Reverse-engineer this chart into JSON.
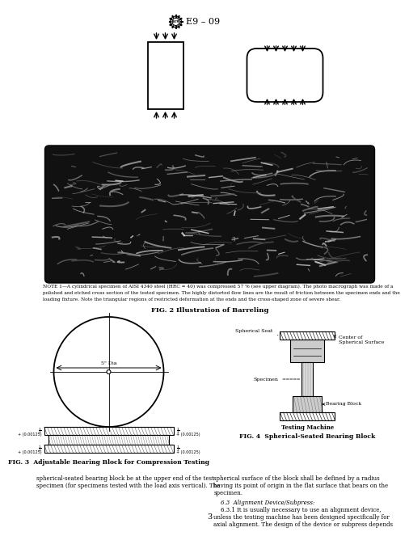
{
  "bg_color": "#ffffff",
  "fig_width": 4.74,
  "fig_height": 6.34,
  "page_number": "3",
  "header_text": "E9 – 09",
  "fig2_caption": "FIG. 2 Illustration of Barreling",
  "fig3_caption": "FIG. 3  Adjustable Bearing Block for Compression Testing",
  "fig4_caption": "FIG. 4  Spherical-Seated Bearing Block",
  "note_text": "NOTE 1—A cylindrical specimen of AISI 4340 steel (HRC ≈ 40) was compressed 57 % (see upper diagram). The photo macrograph was made of a polished and etched cross section of the tested specimen. The highly distorted flow lines are the result of friction between the specimen ends and the loading fixture. Note the triangular regions of restricted deformation at the ends and the cross-shaped zone of severe shear.",
  "spherical_seat_label": "Spherical Seat",
  "center_label": "Center of\nSpherical Surface",
  "specimen_label": "Specimen",
  "bearing_block_label": "Bearing Block",
  "testing_machine_label": "Testing Machine",
  "dim_5dia": "5\" Dia",
  "dim_tol": "± (0.00125)",
  "body_text_left": "spherical-seated bearing block be at the upper end of the test\nspecimen (for specimens tested with the load axis vertical). The",
  "body_text_right_1": "spherical surface of the block shall be defined by a radius\nhaving its point of origin in the flat surface that bears on the\nspecimen.",
  "body_text_right_2": "6.3  Alignment Device/Subpress:",
  "body_text_right_3": "6.3.1 It is usually necessary to use an alignment device,\nunless the testing machine has been designed specifically for\naxial alignment. The design of the device or subpress depends"
}
